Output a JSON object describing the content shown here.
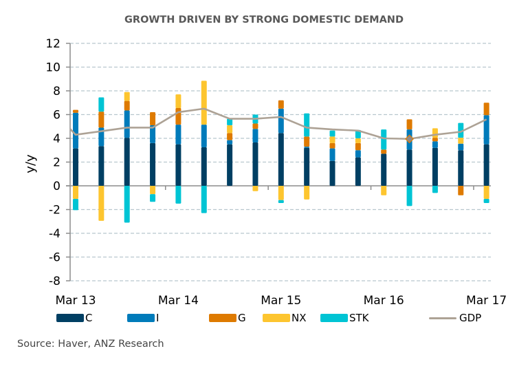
{
  "chart_data": {
    "type": "bar",
    "subtype": "stacked-bar-with-line",
    "title": "GROWTH DRIVEN BY STRONG DOMESTIC DEMAND",
    "xlabel": "",
    "ylabel": "y/y",
    "ylim": [
      -8,
      12
    ],
    "yticks": [
      12,
      10,
      8,
      6,
      4,
      2,
      0,
      -2,
      -4,
      -6,
      -8
    ],
    "grid": true,
    "legend_position": "bottom",
    "x_tick_labels": [
      {
        "label": "Mar 13",
        "index": 0
      },
      {
        "label": "Mar 14",
        "index": 4
      },
      {
        "label": "Mar 15",
        "index": 8
      },
      {
        "label": "Mar 16",
        "index": 12
      },
      {
        "label": "Mar 17",
        "index": 16
      }
    ],
    "categories": [
      "Mar 13",
      "Jun 13",
      "Sep 13",
      "Dec 13",
      "Mar 14",
      "Jun 14",
      "Sep 14",
      "Dec 14",
      "Mar 15",
      "Jun 15",
      "Sep 15",
      "Dec 15",
      "Mar 16",
      "Jun 16",
      "Sep 16",
      "Dec 16",
      "Mar 17"
    ],
    "series": [
      {
        "name": "C",
        "kind": "bar",
        "color": "#003F63",
        "values": [
          3.15,
          3.35,
          4.05,
          3.6,
          3.5,
          3.25,
          3.5,
          3.65,
          4.45,
          3.2,
          2.1,
          2.4,
          2.7,
          3.05,
          3.2,
          3.0,
          3.5
        ]
      },
      {
        "name": "I",
        "kind": "bar",
        "color": "#007BBA",
        "values": [
          3.0,
          1.55,
          2.3,
          1.5,
          1.65,
          1.9,
          0.35,
          1.15,
          2.05,
          0.1,
          1.05,
          0.6,
          0.0,
          1.7,
          0.55,
          0.55,
          2.45
        ]
      },
      {
        "name": "G",
        "kind": "bar",
        "color": "#DE7A00",
        "values": [
          0.25,
          1.35,
          0.8,
          1.1,
          1.4,
          0.0,
          0.6,
          0.45,
          0.7,
          0.85,
          0.45,
          0.6,
          0.35,
          0.85,
          0.3,
          -0.8,
          1.05
        ]
      },
      {
        "name": "NX",
        "kind": "bar",
        "color": "#FDC52F",
        "values": [
          -1.1,
          -2.95,
          0.75,
          -0.7,
          1.15,
          3.7,
          0.65,
          -0.45,
          -1.2,
          -1.15,
          0.55,
          0.4,
          -0.8,
          0.0,
          0.8,
          0.5,
          -1.1
        ]
      },
      {
        "name": "STK",
        "kind": "bar",
        "color": "#00C4D4",
        "values": [
          -0.95,
          1.2,
          -3.1,
          -0.65,
          -1.5,
          -2.3,
          0.55,
          0.75,
          -0.25,
          1.95,
          0.5,
          0.7,
          1.7,
          -1.7,
          -0.6,
          1.25,
          -0.35
        ]
      },
      {
        "name": "GDP",
        "kind": "line",
        "color": "#ADA295",
        "values": [
          4.3,
          4.6,
          4.9,
          4.9,
          6.2,
          6.5,
          5.65,
          5.65,
          5.8,
          4.9,
          4.75,
          4.65,
          4.0,
          3.95,
          4.3,
          4.55,
          5.6
        ],
        "leading_value": 4.8,
        "highlighted_index": 13
      }
    ]
  },
  "source": "Source: Haver, ANZ Research",
  "colors": {
    "grid": "#B8C7CE",
    "axis": "#8C8C8C",
    "title": "#595959"
  }
}
